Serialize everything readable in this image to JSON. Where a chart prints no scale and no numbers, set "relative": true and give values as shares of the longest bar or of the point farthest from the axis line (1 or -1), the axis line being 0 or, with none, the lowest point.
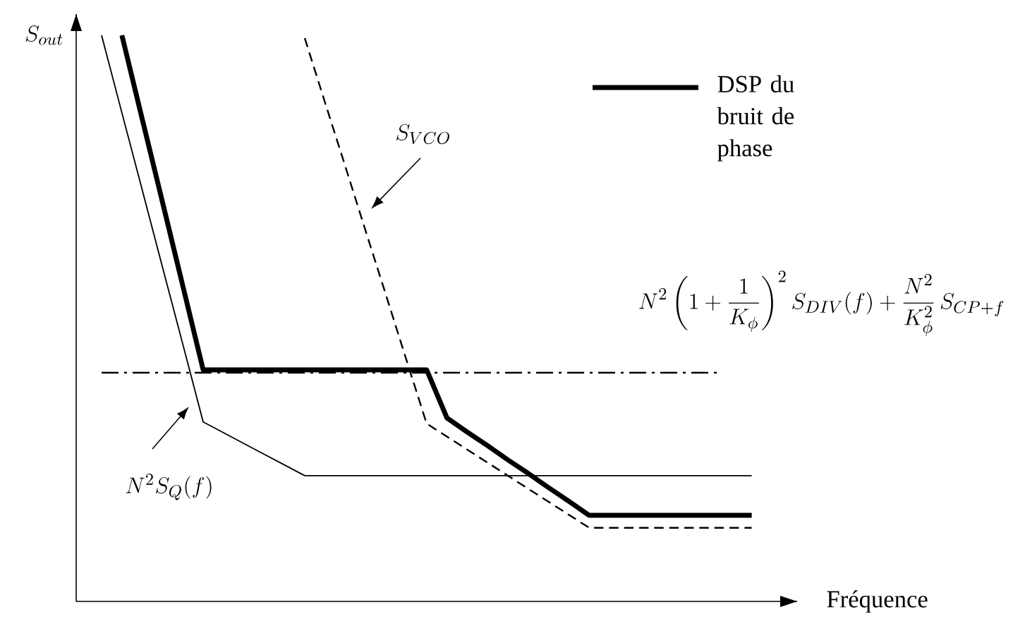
{
  "chart_data": {
    "type": "line",
    "relative": true,
    "xlabel": "Fréquence",
    "ylabel": "S_{out}",
    "legend": "top right",
    "categories": [
      null,
      null,
      null,
      null,
      null,
      null,
      null,
      null,
      null,
      null,
      null,
      null,
      null,
      null,
      null,
      null,
      null,
      null,
      null,
      null,
      null,
      null,
      null,
      null,
      null,
      null,
      null,
      null,
      null,
      null,
      null,
      null,
      null
    ],
    "series": [
      {
        "name": "DSP du bruit de phase",
        "color": "#000000",
        "line_style": "solid",
        "values": [
          null,
          1.0,
          0.852,
          0.705,
          0.557,
          0.409,
          0.409,
          0.409,
          0.409,
          0.409,
          0.409,
          0.409,
          0.409,
          0.409,
          0.409,
          0.409,
          0.409,
          0.324,
          0.299,
          0.275,
          0.25,
          0.226,
          0.201,
          0.177,
          0.152,
          0.152,
          0.152,
          0.152,
          0.152,
          0.152,
          0.152,
          0.152,
          0.152
        ]
      },
      {
        "name": "N^{2}S_{Q}(f)",
        "color": "#000000",
        "line_style": "solid",
        "values": [
          1.0,
          0.863,
          0.727,
          0.59,
          0.454,
          0.317,
          0.298,
          0.279,
          0.26,
          0.241,
          0.222,
          0.222,
          0.222,
          0.222,
          0.222,
          0.222,
          0.222,
          0.222,
          0.222,
          0.222,
          0.222,
          0.222,
          0.222,
          0.222,
          0.222,
          0.222,
          0.222,
          0.222,
          0.222,
          0.222,
          0.222,
          0.222,
          0.222
        ]
      },
      {
        "name": "S_{VCO}",
        "color": "#000000",
        "line_style": "dashed",
        "values": [
          null,
          null,
          null,
          null,
          null,
          null,
          null,
          null,
          null,
          null,
          0.995,
          0.881,
          0.768,
          0.654,
          0.541,
          0.427,
          0.314,
          0.291,
          0.268,
          0.245,
          0.222,
          0.199,
          0.176,
          0.153,
          0.13,
          0.13,
          0.13,
          0.13,
          0.13,
          0.13,
          0.13,
          0.13,
          0.13
        ]
      }
    ],
    "ref_lines": [
      {
        "axis": "y",
        "value": 0.404,
        "color": "#000000",
        "line_style": "dashdot",
        "label": "N^{2}\\left(1+\\frac{1}{K_{\\phi}}\\right)^{2}S_{DIV}(f)+\\frac{N^{2}}{K_{\\phi}^{2}}\\,S_{CP+f}"
      }
    ]
  }
}
